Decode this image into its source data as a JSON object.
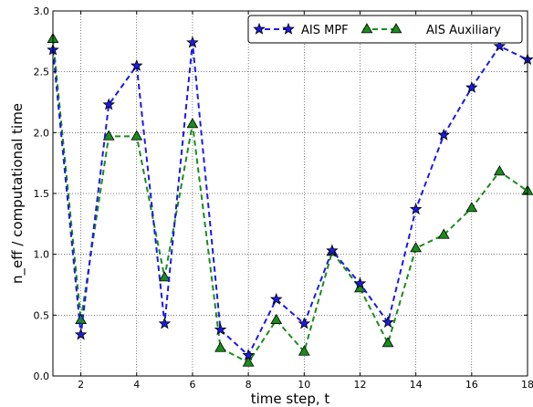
{
  "chart_data": {
    "type": "line",
    "xlabel": "time step, t",
    "ylabel": "n_eff / computational time",
    "xlim": [
      1,
      18
    ],
    "ylim": [
      0.0,
      3.0
    ],
    "x_ticks": [
      "2",
      "4",
      "6",
      "8",
      "10",
      "12",
      "14",
      "16",
      "18"
    ],
    "y_ticks": [
      "0.0",
      "0.5",
      "1.0",
      "1.5",
      "2.0",
      "2.5",
      "3.0"
    ],
    "grid": true,
    "legend_position": "top-right",
    "x": [
      1,
      2,
      3,
      4,
      5,
      6,
      7,
      8,
      9,
      10,
      11,
      12,
      13,
      14,
      15,
      16,
      17,
      18
    ],
    "series": [
      {
        "name": "AIS MPF",
        "color": "#1a1ae6",
        "marker": "star",
        "values": [
          2.68,
          0.34,
          2.23,
          2.55,
          0.43,
          2.74,
          0.38,
          0.17,
          0.63,
          0.43,
          1.03,
          0.76,
          0.44,
          1.37,
          1.98,
          2.37,
          2.71,
          2.6
        ]
      },
      {
        "name": "AIS Auxiliary",
        "color": "#1a8c1a",
        "marker": "triangle",
        "values": [
          2.77,
          0.46,
          1.97,
          1.97,
          0.81,
          2.07,
          0.23,
          0.11,
          0.46,
          0.2,
          1.02,
          0.72,
          0.27,
          1.05,
          1.16,
          1.38,
          1.68,
          1.52
        ]
      }
    ]
  }
}
